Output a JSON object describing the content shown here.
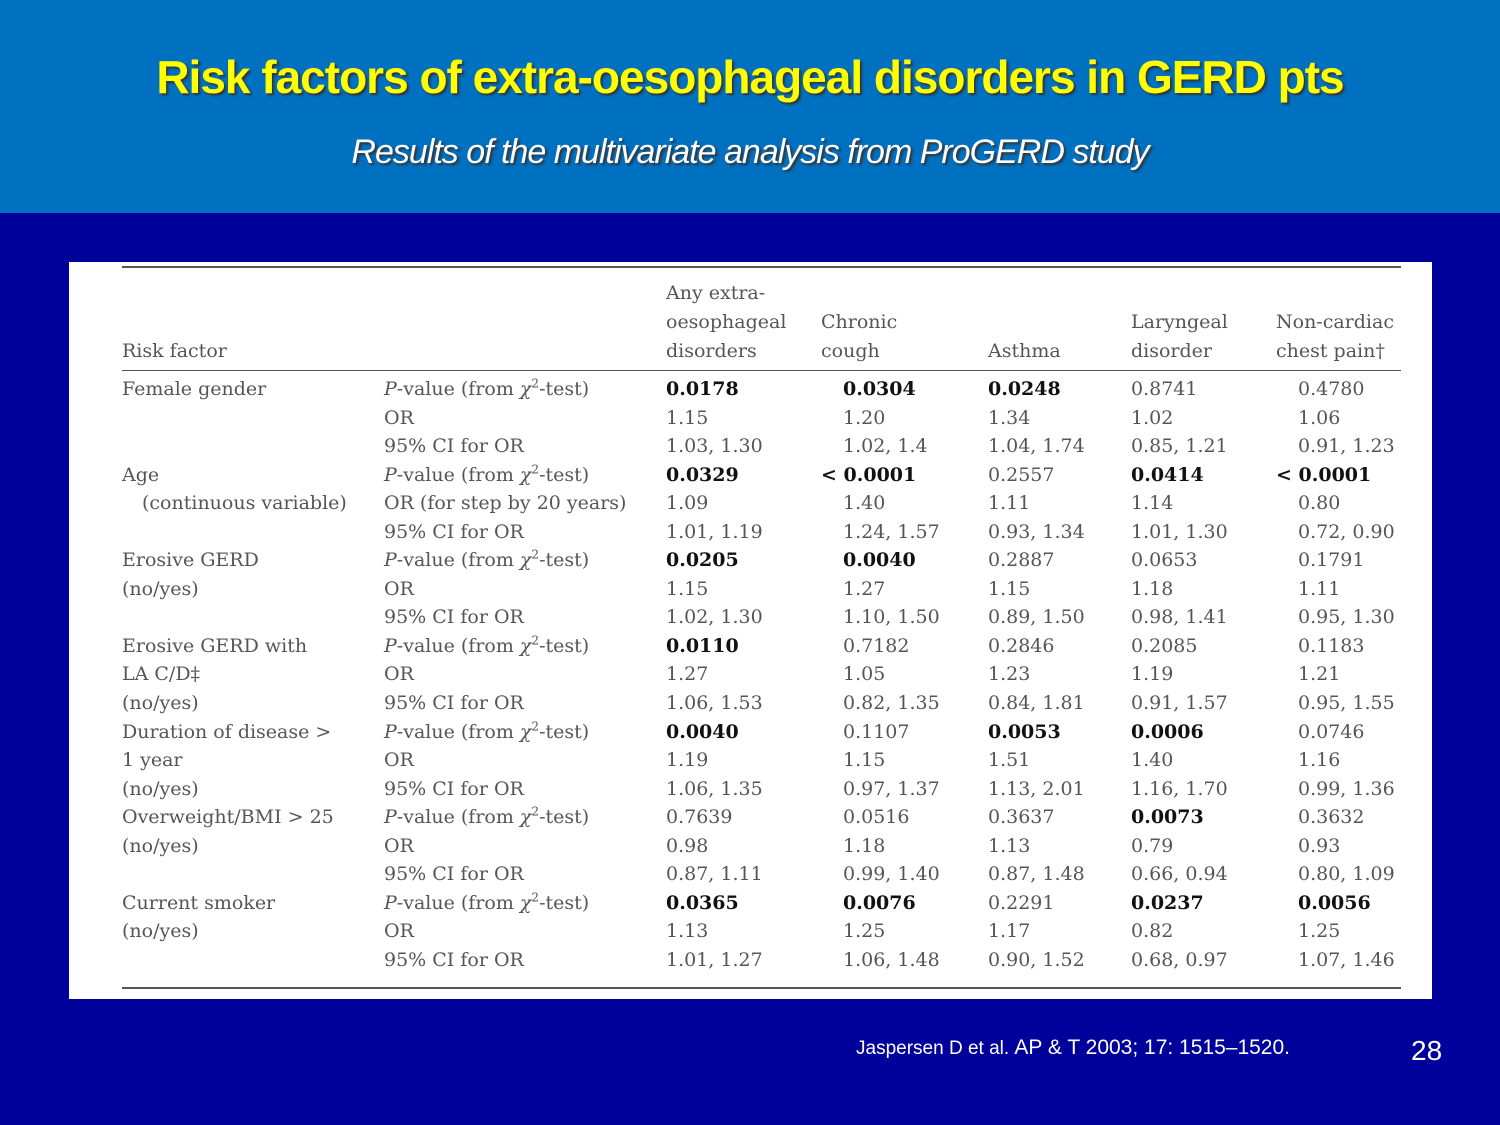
{
  "slide": {
    "title": "Risk factors of extra-oesophageal disorders in GERD pts",
    "subtitle": "Results of the multivariate analysis from ProGERD study",
    "citation_authors": "Jaspersen D et al.",
    "citation_journal": "AP & T 2003; 17: 1515–1520.",
    "page_number": "28"
  },
  "table": {
    "headers": {
      "risk_factor": [
        "Risk factor"
      ],
      "any": [
        "Any extra-",
        "oesophageal",
        "disorders"
      ],
      "cough": [
        "Chronic",
        "cough"
      ],
      "asthma": [
        "Asthma"
      ],
      "laryngeal": [
        "Laryngeal",
        "disorder"
      ],
      "chest": [
        "Non-cardiac",
        "chest pain†"
      ]
    },
    "rows": [
      {
        "factor": "Female gender",
        "stat": "P-value (from χ2-test)",
        "stat_type": "p",
        "values": [
          "0.0178",
          "0.0304",
          "0.0248",
          "0.8741",
          "0.4780"
        ],
        "bold": [
          true,
          true,
          true,
          false,
          false
        ]
      },
      {
        "factor": "",
        "stat": "OR",
        "stat_type": "or",
        "values": [
          "1.15",
          "1.20",
          "1.34",
          "1.02",
          "1.06"
        ],
        "bold": [
          false,
          false,
          false,
          false,
          false
        ]
      },
      {
        "factor": "",
        "stat": "95% CI for OR",
        "stat_type": "ci",
        "values": [
          "1.03, 1.30",
          "1.02, 1.4",
          "1.04, 1.74",
          "0.85, 1.21",
          "0.91, 1.23"
        ],
        "bold": [
          false,
          false,
          false,
          false,
          false
        ]
      },
      {
        "factor": "Age",
        "stat": "P-value (from χ2-test)",
        "stat_type": "p",
        "values": [
          "0.0329",
          "< 0.0001",
          "0.2557",
          "0.0414",
          "< 0.0001"
        ],
        "bold": [
          true,
          true,
          false,
          true,
          true
        ]
      },
      {
        "factor": "(continuous variable)",
        "indent": true,
        "stat": "OR (for step by 20 years)",
        "stat_type": "or",
        "values": [
          "1.09",
          "1.40",
          "1.11",
          "1.14",
          "0.80"
        ],
        "bold": [
          false,
          false,
          false,
          false,
          false
        ]
      },
      {
        "factor": "",
        "stat": "95% CI for OR",
        "stat_type": "ci",
        "values": [
          "1.01, 1.19",
          "1.24, 1.57",
          "0.93, 1.34",
          "1.01, 1.30",
          "0.72, 0.90"
        ],
        "bold": [
          false,
          false,
          false,
          false,
          false
        ]
      },
      {
        "factor": "Erosive GERD",
        "stat": "P-value (from χ2-test)",
        "stat_type": "p",
        "values": [
          "0.0205",
          "0.0040",
          "0.2887",
          "0.0653",
          "0.1791"
        ],
        "bold": [
          true,
          true,
          false,
          false,
          false
        ]
      },
      {
        "factor": "(no/yes)",
        "stat": "OR",
        "stat_type": "or",
        "values": [
          "1.15",
          "1.27",
          "1.15",
          "1.18",
          "1.11"
        ],
        "bold": [
          false,
          false,
          false,
          false,
          false
        ]
      },
      {
        "factor": "",
        "stat": "95% CI for OR",
        "stat_type": "ci",
        "values": [
          "1.02, 1.30",
          "1.10, 1.50",
          "0.89, 1.50",
          "0.98, 1.41",
          "0.95, 1.30"
        ],
        "bold": [
          false,
          false,
          false,
          false,
          false
        ]
      },
      {
        "factor": "Erosive GERD with",
        "stat": "P-value (from χ2-test)",
        "stat_type": "p",
        "values": [
          "0.0110",
          "0.7182",
          "0.2846",
          "0.2085",
          "0.1183"
        ],
        "bold": [
          true,
          false,
          false,
          false,
          false
        ]
      },
      {
        "factor": "LA C/D‡",
        "stat": "OR",
        "stat_type": "or",
        "values": [
          "1.27",
          "1.05",
          "1.23",
          "1.19",
          "1.21"
        ],
        "bold": [
          false,
          false,
          false,
          false,
          false
        ]
      },
      {
        "factor": "(no/yes)",
        "stat": "95% CI for OR",
        "stat_type": "ci",
        "values": [
          "1.06, 1.53",
          "0.82, 1.35",
          "0.84, 1.81",
          "0.91, 1.57",
          "0.95, 1.55"
        ],
        "bold": [
          false,
          false,
          false,
          false,
          false
        ]
      },
      {
        "factor": "Duration of disease >",
        "stat": "P-value (from χ2-test)",
        "stat_type": "p",
        "values": [
          "0.0040",
          "0.1107",
          "0.0053",
          "0.0006",
          "0.0746"
        ],
        "bold": [
          true,
          false,
          true,
          true,
          false
        ]
      },
      {
        "factor": "1 year",
        "stat": "OR",
        "stat_type": "or",
        "values": [
          "1.19",
          "1.15",
          "1.51",
          "1.40",
          "1.16"
        ],
        "bold": [
          false,
          false,
          false,
          false,
          false
        ]
      },
      {
        "factor": "(no/yes)",
        "stat": "95% CI for OR",
        "stat_type": "ci",
        "values": [
          "1.06, 1.35",
          "0.97, 1.37",
          "1.13, 2.01",
          "1.16, 1.70",
          "0.99, 1.36"
        ],
        "bold": [
          false,
          false,
          false,
          false,
          false
        ]
      },
      {
        "factor": "Overweight/BMI > 25",
        "stat": "P-value (from χ2-test)",
        "stat_type": "p",
        "values": [
          "0.7639",
          "0.0516",
          "0.3637",
          "0.0073",
          "0.3632"
        ],
        "bold": [
          false,
          false,
          false,
          true,
          false
        ]
      },
      {
        "factor": "(no/yes)",
        "stat": "OR",
        "stat_type": "or",
        "values": [
          "0.98",
          "1.18",
          "1.13",
          "0.79",
          "0.93"
        ],
        "bold": [
          false,
          false,
          false,
          false,
          false
        ]
      },
      {
        "factor": "",
        "stat": "95% CI for OR",
        "stat_type": "ci",
        "values": [
          "0.87, 1.11",
          "0.99, 1.40",
          "0.87, 1.48",
          "0.66, 0.94",
          "0.80, 1.09"
        ],
        "bold": [
          false,
          false,
          false,
          false,
          false
        ]
      },
      {
        "factor": "Current smoker",
        "stat": "P-value (from χ2-test)",
        "stat_type": "p",
        "values": [
          "0.0365",
          "0.0076",
          "0.2291",
          "0.0237",
          "0.0056"
        ],
        "bold": [
          true,
          true,
          false,
          true,
          true
        ]
      },
      {
        "factor": "(no/yes)",
        "stat": "OR",
        "stat_type": "or",
        "values": [
          "1.13",
          "1.25",
          "1.17",
          "0.82",
          "1.25"
        ],
        "bold": [
          false,
          false,
          false,
          false,
          false
        ]
      },
      {
        "factor": "",
        "stat": "95% CI for OR",
        "stat_type": "ci",
        "values": [
          "1.01, 1.27",
          "1.06, 1.48",
          "0.90, 1.52",
          "0.68, 0.97",
          "1.07, 1.46"
        ],
        "bold": [
          false,
          false,
          false,
          false,
          false
        ]
      }
    ]
  }
}
